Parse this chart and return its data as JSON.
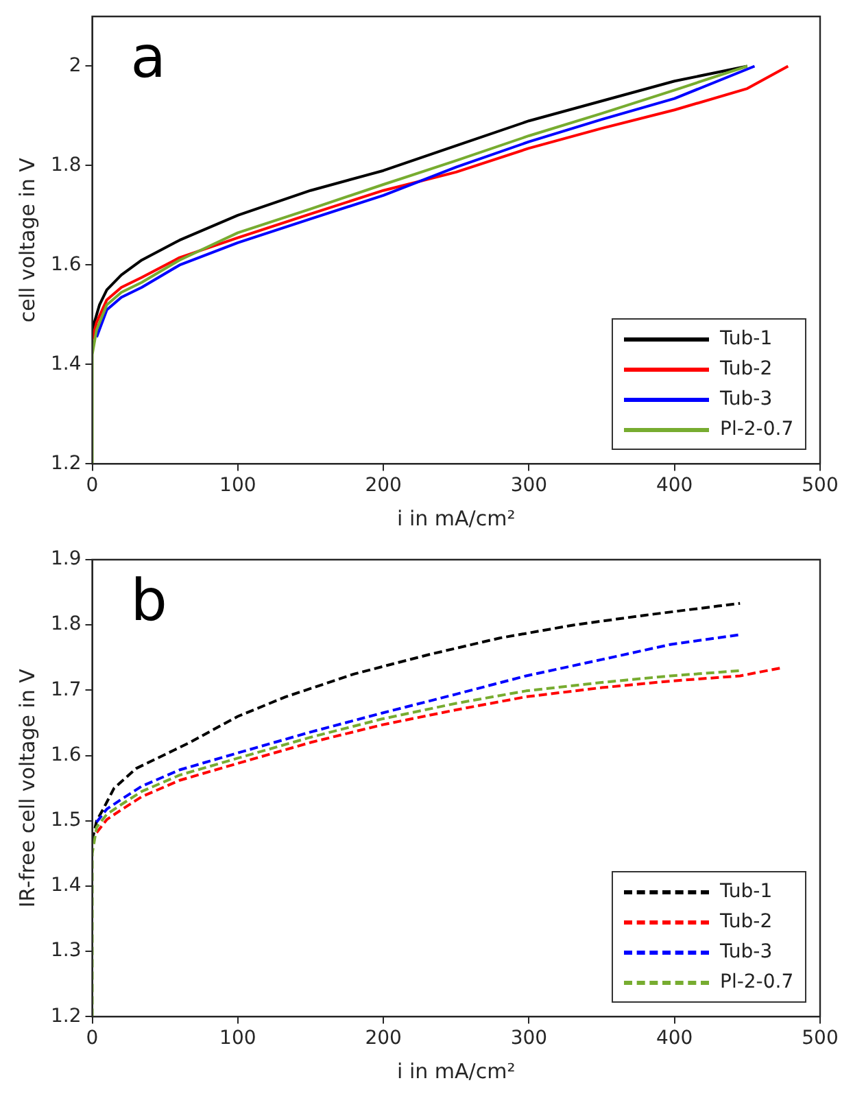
{
  "chart_data": [
    {
      "type": "line",
      "annotations": [
        "a"
      ],
      "xlabel": "i in mA/cm²",
      "ylabel": "cell voltage in V",
      "xlim": [
        0,
        500
      ],
      "xticks": [
        0,
        100,
        200,
        300,
        400,
        500
      ],
      "ylim": [
        1.2,
        2.1
      ],
      "yticks": [
        1.2,
        1.4,
        1.6,
        1.8,
        2
      ],
      "grid": false,
      "legend": "bottom right",
      "marker": "none",
      "line_style": "solid",
      "series": [
        {
          "name": "Tub-1",
          "color": "#000000",
          "x": [
            0,
            2,
            5,
            10,
            20,
            34,
            60,
            100,
            150,
            200,
            250,
            300,
            350,
            400,
            450
          ],
          "values": [
            1.47,
            1.49,
            1.52,
            1.55,
            1.58,
            1.61,
            1.65,
            1.7,
            1.75,
            1.79,
            1.84,
            1.89,
            1.93,
            1.97,
            2.0
          ]
        },
        {
          "name": "Tub-2",
          "color": "#ff0000",
          "x": [
            0,
            3,
            10,
            20,
            34,
            60,
            100,
            150,
            200,
            250,
            300,
            350,
            400,
            450,
            478
          ],
          "values": [
            1.45,
            1.485,
            1.53,
            1.555,
            1.575,
            1.615,
            1.655,
            1.703,
            1.75,
            1.787,
            1.835,
            1.875,
            1.912,
            1.955,
            2.0
          ]
        },
        {
          "name": "Tub-3",
          "color": "#0000ff",
          "x": [
            3,
            10,
            20,
            34,
            60,
            100,
            150,
            200,
            250,
            300,
            350,
            400,
            455
          ],
          "values": [
            1.455,
            1.51,
            1.535,
            1.555,
            1.6,
            1.645,
            1.693,
            1.74,
            1.797,
            1.848,
            1.893,
            1.935,
            2.0
          ]
        },
        {
          "name": "Pl-2-0.7",
          "color": "#77ac30",
          "x": [
            0,
            0,
            3,
            10,
            20,
            34,
            60,
            100,
            150,
            200,
            250,
            300,
            350,
            400,
            450
          ],
          "values": [
            1.2,
            1.42,
            1.47,
            1.52,
            1.545,
            1.565,
            1.61,
            1.665,
            1.713,
            1.762,
            1.81,
            1.86,
            1.905,
            1.952,
            2.0
          ]
        }
      ]
    },
    {
      "type": "line",
      "annotations": [
        "b"
      ],
      "xlabel": "i in mA/cm²",
      "ylabel": "IR-free cell voltage in V",
      "xlim": [
        0,
        500
      ],
      "xticks": [
        0,
        100,
        200,
        300,
        400,
        500
      ],
      "ylim": [
        1.2,
        1.9
      ],
      "yticks": [
        1.2,
        1.3,
        1.4,
        1.5,
        1.6,
        1.7,
        1.8,
        1.9
      ],
      "grid": false,
      "legend": "bottom right",
      "marker": "none",
      "line_style": "dashed",
      "series": [
        {
          "name": "Tub-1",
          "color": "#000000",
          "x": [
            0,
            3,
            8,
            15,
            30,
            67,
            100,
            133,
            180,
            232,
            280,
            331,
            380,
            430,
            445
          ],
          "values": [
            1.47,
            1.5,
            1.52,
            1.55,
            1.58,
            1.62,
            1.66,
            1.69,
            1.725,
            1.755,
            1.78,
            1.8,
            1.815,
            1.829,
            1.833
          ]
        },
        {
          "name": "Tub-2",
          "color": "#ff0000",
          "x": [
            3,
            10,
            20,
            34,
            60,
            100,
            150,
            199,
            250,
            298,
            350,
            397,
            445,
            475
          ],
          "values": [
            1.482,
            1.502,
            1.517,
            1.537,
            1.562,
            1.588,
            1.62,
            1.647,
            1.67,
            1.69,
            1.704,
            1.714,
            1.722,
            1.735
          ]
        },
        {
          "name": "Tub-3",
          "color": "#0000ff",
          "x": [
            3,
            10,
            20,
            34,
            60,
            100,
            150,
            199,
            250,
            298,
            350,
            397,
            445
          ],
          "values": [
            1.498,
            1.518,
            1.533,
            1.553,
            1.578,
            1.604,
            1.636,
            1.665,
            1.694,
            1.722,
            1.747,
            1.77,
            1.785
          ]
        },
        {
          "name": "Pl-2-0.7",
          "color": "#77ac30",
          "x": [
            0,
            0,
            3,
            10,
            20,
            34,
            60,
            100,
            150,
            199,
            250,
            298,
            350,
            397,
            445
          ],
          "values": [
            1.2,
            1.45,
            1.49,
            1.51,
            1.525,
            1.545,
            1.57,
            1.596,
            1.628,
            1.656,
            1.68,
            1.699,
            1.712,
            1.722,
            1.73
          ]
        }
      ]
    }
  ]
}
